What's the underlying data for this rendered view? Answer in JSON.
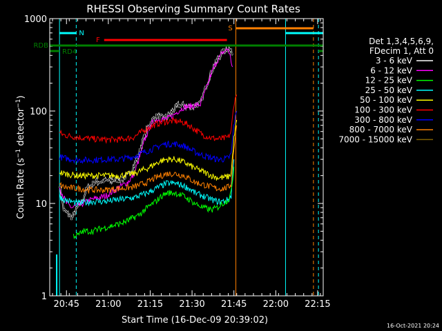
{
  "chart_data": {
    "type": "line",
    "title": "RHESSI Observing Summary Count Rates",
    "xlabel": "Start Time (16-Dec-09 20:39:02)",
    "ylabel": "Count Rate (s⁻¹ detector⁻¹)",
    "y_scale": "log",
    "ylim": [
      1,
      1000
    ],
    "xlim_minutes_after_2039": [
      0,
      98
    ],
    "x_tick_labels": [
      "20:45",
      "21:00",
      "21:15",
      "21:30",
      "21:45",
      "22:00",
      "22:15"
    ],
    "x_tick_minutes": [
      6,
      21,
      36,
      51,
      66,
      81,
      96
    ],
    "y_tick_labels": [
      "1",
      "10",
      "100",
      "1000"
    ],
    "y_tick_values": [
      1,
      10,
      100,
      1000
    ],
    "legend": {
      "header": [
        "Det 1,3,4,5,6,9,",
        "FDecim 1, Att 0"
      ],
      "placement": "right",
      "items": [
        {
          "label": "3 - 6 keV",
          "color": "#000000"
        },
        {
          "label": "6 - 12 keV",
          "color": "#ff00ff"
        },
        {
          "label": "12 - 25 keV",
          "color": "#00ff00"
        },
        {
          "label": "25 - 50 keV",
          "color": "#00ffff"
        },
        {
          "label": "50 - 100 keV",
          "color": "#ffff00"
        },
        {
          "label": "100 - 300 keV",
          "color": "#ff0000"
        },
        {
          "label": "300 - 800 keV",
          "color": "#0000ff"
        },
        {
          "label": "800 - 7000 keV",
          "color": "#ff8000"
        },
        {
          "label": "7000 - 15000 keV",
          "color": "#806000"
        }
      ]
    },
    "markers": [
      {
        "label": "N",
        "color": "#00ffff"
      },
      {
        "label": "F",
        "color": "#ff0000"
      },
      {
        "label": "S",
        "color": "#ff8000"
      },
      {
        "label": "RDB",
        "color": "#008000"
      },
      {
        "label": "RD4",
        "color": "#008000"
      }
    ],
    "series": [
      {
        "key": "black",
        "x": [
          3.5,
          5,
          8,
          10,
          12,
          13,
          16,
          20,
          25,
          28,
          30,
          32,
          34,
          36,
          38,
          40,
          42,
          44,
          46,
          48,
          50,
          52,
          54,
          56,
          58,
          60,
          62,
          64,
          65.5
        ],
        "y": [
          16,
          8.5,
          7,
          9,
          11,
          14,
          17,
          17.5,
          18,
          20,
          25,
          35,
          55,
          75,
          88,
          85,
          85,
          100,
          115,
          115,
          110,
          115,
          120,
          185,
          270,
          360,
          440,
          480,
          420
        ]
      },
      {
        "key": "magenta",
        "x": [
          3.5,
          6,
          8,
          10,
          12,
          15,
          20,
          25,
          28,
          30,
          32,
          34,
          36,
          38,
          40,
          42,
          44,
          46,
          48,
          50,
          52,
          54,
          56,
          58,
          60,
          62,
          64,
          65.5
        ],
        "y": [
          15,
          10,
          9,
          9.5,
          10,
          11,
          12,
          15,
          17,
          20,
          30,
          48,
          70,
          80,
          82,
          82,
          88,
          100,
          110,
          112,
          115,
          118,
          170,
          260,
          350,
          430,
          470,
          300
        ]
      },
      {
        "key": "red",
        "x": [
          3.5,
          5,
          10,
          15,
          20,
          25,
          30,
          35,
          38,
          40,
          42,
          45,
          48,
          50,
          52,
          55,
          58,
          60,
          62,
          64,
          65,
          66,
          67
        ],
        "y": [
          58,
          55,
          52,
          50,
          49,
          49,
          52,
          65,
          72,
          75,
          77,
          78,
          75,
          70,
          63,
          55,
          51,
          50,
          50,
          52,
          60,
          120,
          150
        ]
      },
      {
        "key": "blue",
        "x": [
          3.5,
          5,
          10,
          15,
          20,
          25,
          30,
          35,
          38,
          40,
          42,
          45,
          48,
          50,
          52,
          55,
          58,
          60,
          62,
          64,
          65,
          66,
          67
        ],
        "y": [
          32,
          31,
          29.5,
          29.5,
          30,
          30,
          32,
          37,
          40,
          43,
          44,
          44,
          42,
          39,
          36,
          33,
          31,
          30,
          30,
          31,
          34,
          70,
          100
        ]
      },
      {
        "key": "yellow",
        "x": [
          3.5,
          5,
          10,
          15,
          20,
          25,
          30,
          35,
          38,
          40,
          42,
          45,
          48,
          50,
          52,
          55,
          58,
          60,
          62,
          64,
          65,
          66,
          67
        ],
        "y": [
          22,
          21,
          20,
          20,
          20,
          20,
          21,
          24,
          27,
          29,
          30,
          30,
          28,
          26,
          24,
          22,
          20,
          19,
          19,
          19.5,
          21,
          50,
          80
        ]
      },
      {
        "key": "orange",
        "x": [
          3.5,
          5,
          10,
          15,
          20,
          25,
          30,
          35,
          38,
          40,
          42,
          45,
          48,
          50,
          52,
          55,
          58,
          60,
          62,
          64,
          65,
          66,
          67
        ],
        "y": [
          16,
          15,
          14.5,
          14,
          14,
          14.5,
          15,
          17,
          19,
          20,
          21,
          21,
          20,
          18.5,
          17,
          16,
          15,
          14.5,
          14.5,
          15,
          16,
          40,
          70
        ]
      },
      {
        "key": "cyan",
        "x": [
          3.5,
          5,
          10,
          15,
          20,
          25,
          30,
          35,
          38,
          40,
          42,
          45,
          48,
          50,
          52,
          55,
          58,
          60,
          62,
          64,
          65,
          66
        ],
        "y": [
          12,
          11,
          10,
          10.5,
          10.5,
          11,
          11.5,
          13,
          14.5,
          15.5,
          16.5,
          16.5,
          15.5,
          14.5,
          13,
          12,
          11,
          10.5,
          10.5,
          11,
          12,
          30
        ]
      },
      {
        "key": "green",
        "x": [
          8.5,
          10,
          12,
          15,
          20,
          25,
          28,
          30,
          32,
          35,
          38,
          40,
          42,
          45,
          48,
          50,
          52,
          55,
          58,
          60,
          62,
          64,
          65,
          66
        ],
        "y": [
          4.5,
          4.5,
          5,
          5,
          5.5,
          6,
          6.5,
          7,
          7.5,
          9,
          10.5,
          12,
          13,
          13,
          12,
          11,
          10,
          9,
          8.5,
          9,
          10,
          11,
          13,
          25
        ]
      }
    ],
    "annotations": {
      "footer": "16-Oct-2021 20:24"
    }
  }
}
